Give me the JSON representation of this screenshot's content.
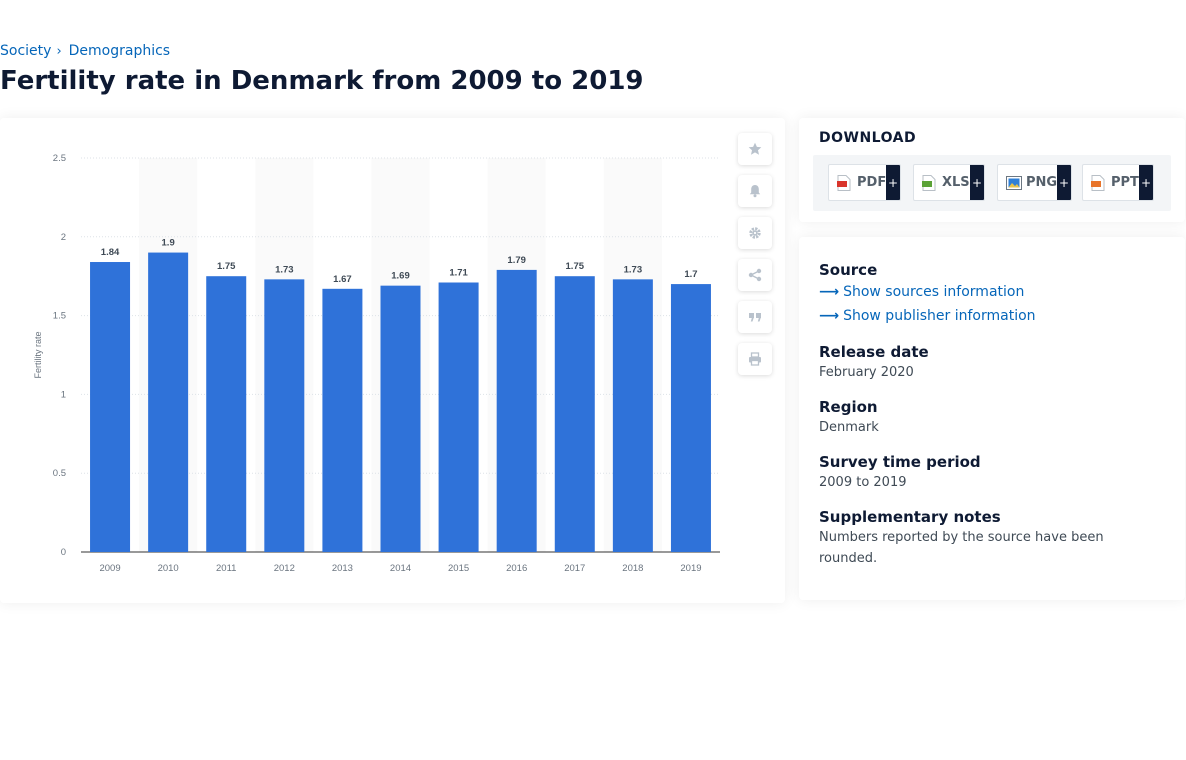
{
  "breadcrumb": [
    "Society",
    "Demographics"
  ],
  "page_title": "Fertility rate in Denmark from 2009 to 2019",
  "tools": [
    {
      "name": "favorite-star-icon",
      "glyph": "★"
    },
    {
      "name": "notification-bell-icon",
      "glyph": "bell"
    },
    {
      "name": "settings-gear-icon",
      "glyph": "gear"
    },
    {
      "name": "share-icon",
      "glyph": "share"
    },
    {
      "name": "cite-quote-icon",
      "glyph": "❞"
    },
    {
      "name": "print-icon",
      "glyph": "print"
    }
  ],
  "download": {
    "title": "DOWNLOAD",
    "buttons": [
      {
        "label": "PDF",
        "icon": "pdf-file-icon",
        "color": "#d9342b"
      },
      {
        "label": "XLS",
        "icon": "xls-file-icon",
        "color": "#5ba236"
      },
      {
        "label": "PNG",
        "icon": "png-file-icon",
        "color": "#2f7fd6"
      },
      {
        "label": "PPT",
        "icon": "ppt-file-icon",
        "color": "#e8742a"
      }
    ],
    "plus": "+"
  },
  "info": {
    "source_heading": "Source",
    "show_sources": "Show sources information",
    "show_publisher": "Show publisher information",
    "release_heading": "Release date",
    "release_value": "February 2020",
    "region_heading": "Region",
    "region_value": "Denmark",
    "survey_heading": "Survey time period",
    "survey_value": "2009 to 2019",
    "notes_heading": "Supplementary notes",
    "notes_value": "Numbers reported by the source have been rounded."
  },
  "chart_data": {
    "type": "bar",
    "title": "",
    "xlabel": "",
    "ylabel": "Fertility rate",
    "categories": [
      "2009",
      "2010",
      "2011",
      "2012",
      "2013",
      "2014",
      "2015",
      "2016",
      "2017",
      "2018",
      "2019"
    ],
    "values": [
      1.84,
      1.9,
      1.75,
      1.73,
      1.67,
      1.69,
      1.71,
      1.79,
      1.75,
      1.73,
      1.7
    ],
    "data_labels": [
      "1.84",
      "1.9",
      "1.75",
      "1.73",
      "1.67",
      "1.69",
      "1.71",
      "1.79",
      "1.75",
      "1.73",
      "1.7"
    ],
    "yticks": [
      "0",
      "0.5",
      "1",
      "1.5",
      "2",
      "2.5"
    ],
    "ylim": [
      0,
      2.5
    ],
    "grid": true,
    "bar_color": "#2f72d9"
  }
}
